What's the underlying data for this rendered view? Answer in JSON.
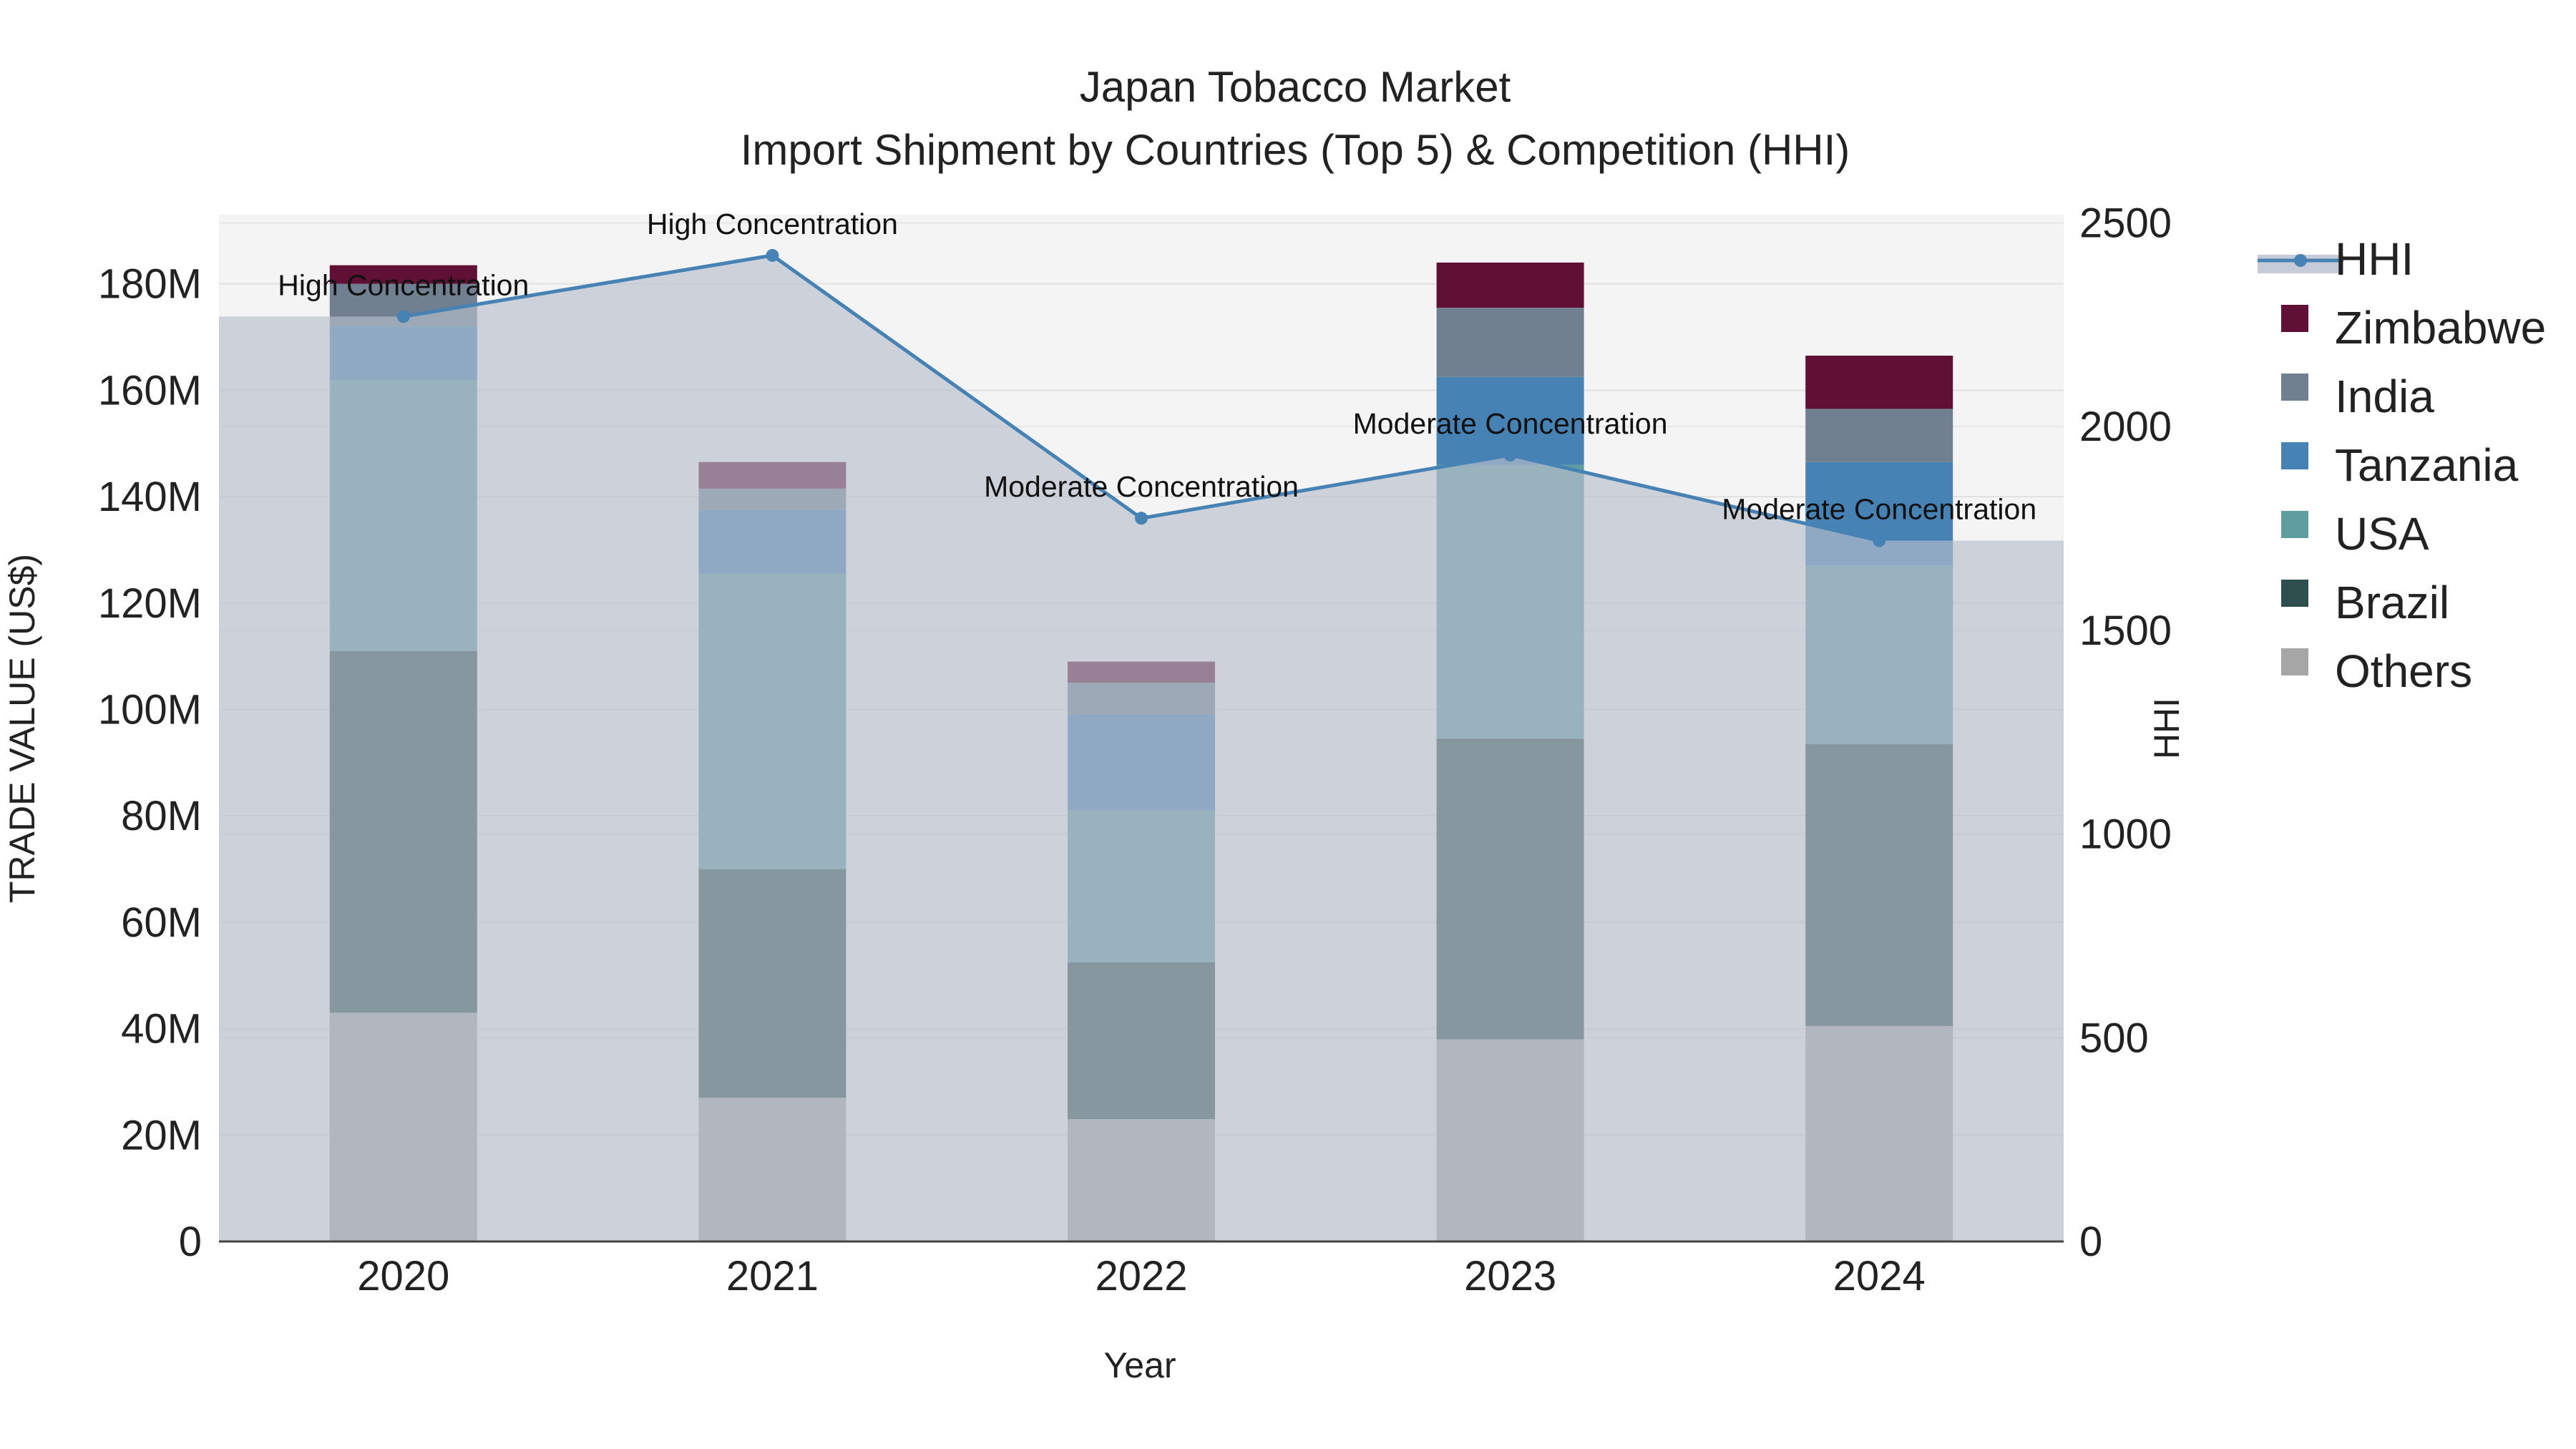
{
  "chart_data": {
    "type": "bar",
    "stacked": true,
    "title": "Japan Tobacco Market",
    "subtitle": "Import Shipment by Countries (Top 5) & Competition (HHI)",
    "xlabel": "Year",
    "ylabel": "TRADE VALUE (US$)",
    "y2label": "HHI",
    "categories": [
      "2020",
      "2021",
      "2022",
      "2023",
      "2024"
    ],
    "ylim": [
      0,
      193000000
    ],
    "y_ticks": [
      0,
      20000000,
      40000000,
      60000000,
      80000000,
      100000000,
      120000000,
      140000000,
      160000000,
      180000000
    ],
    "y_tick_labels": [
      "0",
      "20M",
      "40M",
      "60M",
      "80M",
      "100M",
      "120M",
      "140M",
      "160M",
      "180M"
    ],
    "y2lim": [
      0,
      2520
    ],
    "y2_ticks": [
      0,
      500,
      1000,
      1500,
      2000,
      2500
    ],
    "y2_tick_labels": [
      "0",
      "500",
      "1000",
      "1500",
      "2000",
      "2500"
    ],
    "series": [
      {
        "name": "Others",
        "color": "#a6a6a6",
        "values": [
          43000000,
          27000000,
          23000000,
          38000000,
          40500000
        ]
      },
      {
        "name": "Brazil",
        "color": "#2f4f4f",
        "values": [
          68000000,
          43000000,
          29500000,
          56500000,
          53000000
        ]
      },
      {
        "name": "USA",
        "color": "#5f9ea0",
        "values": [
          51000000,
          55500000,
          28500000,
          51500000,
          33500000
        ]
      },
      {
        "name": "Tanzania",
        "color": "#4682b4",
        "values": [
          10000000,
          12000000,
          18000000,
          16500000,
          19500000
        ]
      },
      {
        "name": "India",
        "color": "#708090",
        "values": [
          8000000,
          4000000,
          6000000,
          13000000,
          10000000
        ]
      },
      {
        "name": "Zimbabwe",
        "color": "#601035",
        "values": [
          3500000,
          5000000,
          4000000,
          8500000,
          10000000
        ]
      }
    ],
    "hhi": {
      "name": "HHI",
      "color": "#4682b4",
      "values": [
        2270,
        2420,
        1775,
        1930,
        1720
      ],
      "annotations": [
        "High Concentration",
        "High Concentration",
        "Moderate Concentration",
        "Moderate Concentration",
        "Moderate Concentration"
      ]
    },
    "legend_order": [
      "HHI",
      "Zimbabwe",
      "India",
      "Tanzania",
      "USA",
      "Brazil",
      "Others"
    ],
    "legend_position": "right",
    "grid": true
  }
}
